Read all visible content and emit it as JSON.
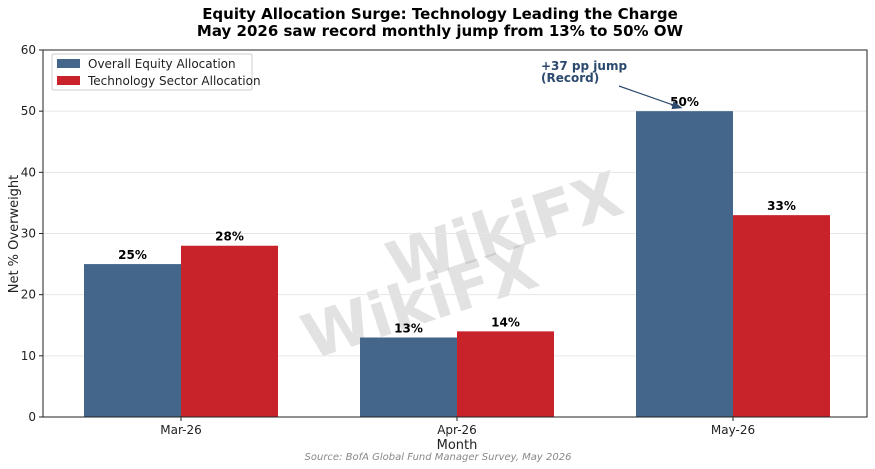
{
  "title": "Equity Allocation Surge: Technology Leading the Charge",
  "subtitle": "May 2026 saw record monthly jump from 13% to 50% OW",
  "source": "Source: BofA Global Fund Manager Survey, May 2026",
  "watermark": "WikiFX",
  "colors": {
    "overall": "#44668a",
    "tech": "#c8222a",
    "annotation": "#2c4a6e"
  },
  "chart_data": {
    "type": "bar",
    "categories": [
      "Mar-26",
      "Apr-26",
      "May-26"
    ],
    "series": [
      {
        "name": "Overall Equity Allocation",
        "values": [
          25,
          13,
          50
        ],
        "labels": [
          "25%",
          "13%",
          "50%"
        ]
      },
      {
        "name": "Technology Sector Allocation",
        "values": [
          28,
          14,
          33
        ],
        "labels": [
          "28%",
          "14%",
          "33%"
        ]
      }
    ],
    "xlabel": "Month",
    "ylabel": "Net % Overweight",
    "ylim": [
      0,
      60
    ],
    "yticks": [
      "0",
      "10",
      "20",
      "30",
      "40",
      "50",
      "60"
    ],
    "grid": true,
    "legend_position": "top-left",
    "annotation": {
      "lines": [
        "+37 pp jump",
        "(Record)"
      ],
      "category": "May-26",
      "value": 50
    }
  }
}
